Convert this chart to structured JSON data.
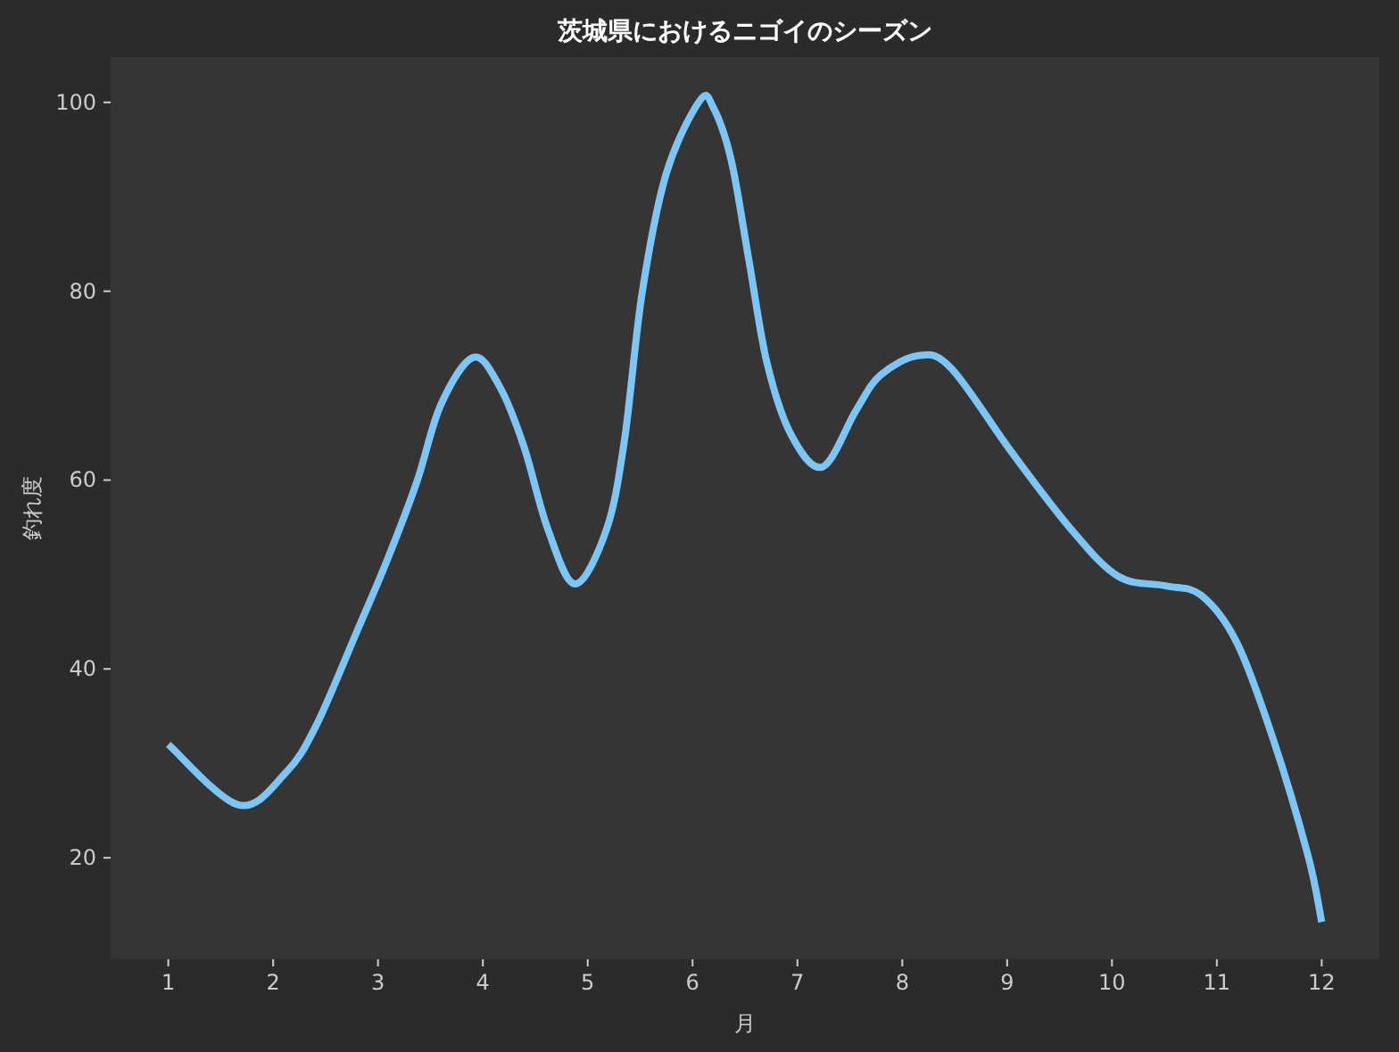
{
  "chart_data": {
    "type": "line",
    "title": "茨城県におけるニゴイのシーズン",
    "xlabel": "月",
    "ylabel": "釣れ度",
    "x": [
      1,
      1.67,
      2.12,
      2.41,
      2.8,
      3.09,
      3.37,
      3.6,
      3.91,
      4.16,
      4.39,
      4.62,
      4.88,
      5.18,
      5.35,
      5.52,
      5.75,
      6.07,
      6.2,
      6.37,
      6.54,
      6.71,
      6.94,
      7.24,
      7.56,
      7.79,
      8.16,
      8.47,
      9.04,
      9.61,
      10.06,
      10.51,
      10.85,
      11.19,
      11.53,
      11.87,
      12
    ],
    "series": [
      {
        "color": "#7cc5f5",
        "values": [
          32,
          25.6,
          29,
          34,
          44,
          51.6,
          59.8,
          68,
          73,
          69.9,
          63.6,
          54.8,
          49,
          54.8,
          64.2,
          79.9,
          92.5,
          100.2,
          99.4,
          93.8,
          83.1,
          72.4,
          64.8,
          61.4,
          67.4,
          71.1,
          73.2,
          71.8,
          63,
          54.8,
          49.8,
          48.8,
          47.8,
          42.8,
          32.8,
          20.2,
          13.2
        ]
      }
    ],
    "xlim": [
      0.45,
      12.55
    ],
    "ylim": [
      9.25,
      104.8
    ],
    "xticks": [
      1,
      2,
      3,
      4,
      5,
      6,
      7,
      8,
      9,
      10,
      11,
      12
    ],
    "yticks": [
      20,
      40,
      60,
      80,
      100
    ],
    "grid": false
  }
}
